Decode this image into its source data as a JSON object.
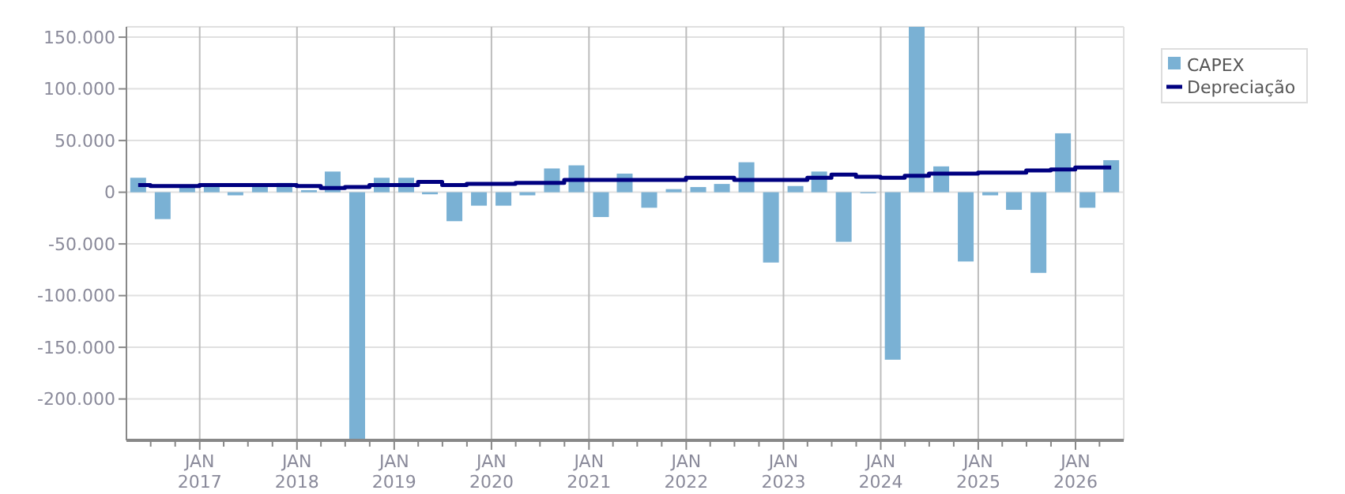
{
  "chart_data": {
    "type": "bar",
    "x": [
      "2016-05-15",
      "2016-08-15",
      "2016-11-15",
      "2017-02-15",
      "2017-05-15",
      "2017-08-15",
      "2017-11-15",
      "2018-02-15",
      "2018-05-15",
      "2018-08-15",
      "2018-11-15",
      "2019-02-15",
      "2019-05-15",
      "2019-08-15",
      "2019-11-15",
      "2020-02-15",
      "2020-05-15",
      "2020-08-15",
      "2020-11-15",
      "2021-02-15",
      "2021-05-15",
      "2021-08-15",
      "2021-11-15",
      "2022-02-15",
      "2022-05-15",
      "2022-08-15",
      "2022-11-15",
      "2023-02-15",
      "2023-05-15",
      "2023-08-15",
      "2023-11-15",
      "2024-02-15",
      "2024-05-15",
      "2024-08-15",
      "2024-11-15",
      "2025-02-15",
      "2025-05-15",
      "2025-08-15",
      "2025-11-15",
      "2026-02-15",
      "2026-05-15"
    ],
    "series": [
      {
        "name": "CAPEX",
        "color": "#7ab1d4",
        "values": [
          14000,
          -26000,
          5000,
          8000,
          -3000,
          7000,
          9000,
          2000,
          20000,
          -240000,
          14000,
          14000,
          -2000,
          -28000,
          -13000,
          -13000,
          -3000,
          23000,
          26000,
          -24000,
          18000,
          -15000,
          3000,
          5000,
          8000,
          29000,
          -68000,
          6000,
          20000,
          -48000,
          -1000,
          -162000,
          160000,
          25000,
          -67000,
          -3000,
          -17000,
          -78000,
          57000,
          -15000,
          31000
        ]
      },
      {
        "name": "Depreciação",
        "type": "step",
        "color": "#000080",
        "values": [
          7000,
          6000,
          6000,
          7000,
          7000,
          7000,
          7000,
          6000,
          4000,
          5000,
          7000,
          7000,
          10000,
          7000,
          8000,
          8000,
          9000,
          9000,
          12000,
          12000,
          12000,
          12000,
          12000,
          14000,
          14000,
          12000,
          12000,
          12000,
          14000,
          17000,
          15000,
          14000,
          16000,
          18000,
          18000,
          19000,
          19000,
          21000,
          22000,
          24000,
          24000
        ]
      }
    ],
    "xlim": [
      "2016-04-01",
      "2026-07-01"
    ],
    "xticks": [
      {
        "value": "2016-07-01",
        "label": null
      },
      {
        "value": "2016-10-01",
        "label": null
      },
      {
        "value": "2017-01-01",
        "label": "JAN 2017"
      },
      {
        "value": "2017-04-01",
        "label": null
      },
      {
        "value": "2017-07-01",
        "label": null
      },
      {
        "value": "2017-10-01",
        "label": null
      },
      {
        "value": "2018-01-01",
        "label": "JAN 2018"
      },
      {
        "value": "2018-04-01",
        "label": null
      },
      {
        "value": "2018-07-01",
        "label": null
      },
      {
        "value": "2018-10-01",
        "label": null
      },
      {
        "value": "2019-01-01",
        "label": "JAN 2019"
      },
      {
        "value": "2019-04-01",
        "label": null
      },
      {
        "value": "2019-07-01",
        "label": null
      },
      {
        "value": "2019-10-01",
        "label": null
      },
      {
        "value": "2020-01-01",
        "label": "JAN 2020"
      },
      {
        "value": "2020-04-01",
        "label": null
      },
      {
        "value": "2020-07-01",
        "label": null
      },
      {
        "value": "2020-10-01",
        "label": null
      },
      {
        "value": "2021-01-01",
        "label": "JAN 2021"
      },
      {
        "value": "2021-04-01",
        "label": null
      },
      {
        "value": "2021-07-01",
        "label": null
      },
      {
        "value": "2021-10-01",
        "label": null
      },
      {
        "value": "2022-01-01",
        "label": "JAN 2022"
      },
      {
        "value": "2022-04-01",
        "label": null
      },
      {
        "value": "2022-07-01",
        "label": null
      },
      {
        "value": "2022-10-01",
        "label": null
      },
      {
        "value": "2023-01-01",
        "label": "JAN 2023"
      },
      {
        "value": "2023-04-01",
        "label": null
      },
      {
        "value": "2023-07-01",
        "label": null
      },
      {
        "value": "2023-10-01",
        "label": null
      },
      {
        "value": "2024-01-01",
        "label": "JAN 2024"
      },
      {
        "value": "2024-04-01",
        "label": null
      },
      {
        "value": "2024-07-01",
        "label": null
      },
      {
        "value": "2024-10-01",
        "label": null
      },
      {
        "value": "2025-01-01",
        "label": "JAN 2025"
      },
      {
        "value": "2025-04-01",
        "label": null
      },
      {
        "value": "2025-07-01",
        "label": null
      },
      {
        "value": "2025-10-01",
        "label": null
      },
      {
        "value": "2026-01-01",
        "label": "JAN 2026"
      },
      {
        "value": "2026-04-01",
        "label": null
      }
    ],
    "ylim": [
      -240000,
      160000
    ],
    "yticks": [
      {
        "value": -200000,
        "label": "-200.000"
      },
      {
        "value": -150000,
        "label": "-150.000"
      },
      {
        "value": -100000,
        "label": "-100.000"
      },
      {
        "value": -50000,
        "label": "-50.000"
      },
      {
        "value": 0,
        "label": "0"
      },
      {
        "value": 50000,
        "label": "50.000"
      },
      {
        "value": 100000,
        "label": "100.000"
      },
      {
        "value": 150000,
        "label": "150.000"
      }
    ],
    "grid": true,
    "legend": "top right"
  }
}
